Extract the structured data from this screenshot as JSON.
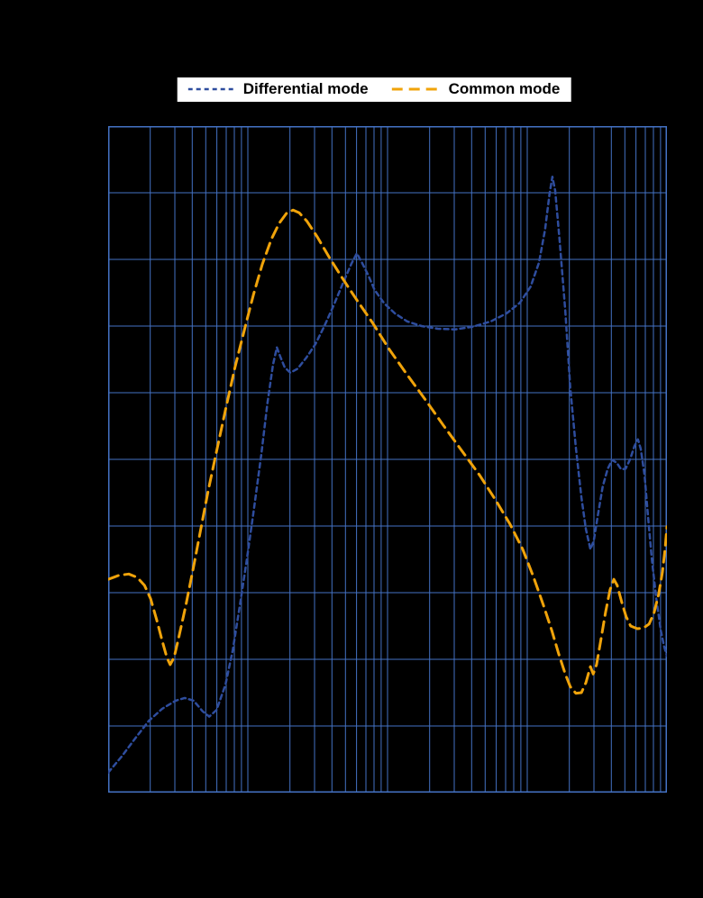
{
  "legend": {
    "background_color": "#ffffff",
    "text_color": "#000000"
  },
  "chart_data": {
    "type": "line",
    "title": "",
    "xlabel": "",
    "ylabel": "",
    "x_scale": "log",
    "x_decades": 4,
    "y_divisions": 10,
    "grid": true,
    "grid_color": "#4472c4",
    "background_color": "#000000",
    "legend_position": "top-center",
    "axis_tick_labels_visible": false,
    "series": [
      {
        "name": "Differential mode",
        "color": "#2e4d9e",
        "dash": "5 4",
        "width": 2.5,
        "points": [
          [
            0.0,
            0.03
          ],
          [
            0.024,
            0.054
          ],
          [
            0.048,
            0.081
          ],
          [
            0.073,
            0.108
          ],
          [
            0.097,
            0.126
          ],
          [
            0.121,
            0.138
          ],
          [
            0.137,
            0.142
          ],
          [
            0.153,
            0.138
          ],
          [
            0.169,
            0.122
          ],
          [
            0.181,
            0.114
          ],
          [
            0.194,
            0.124
          ],
          [
            0.21,
            0.162
          ],
          [
            0.223,
            0.214
          ],
          [
            0.235,
            0.277
          ],
          [
            0.248,
            0.349
          ],
          [
            0.261,
            0.426
          ],
          [
            0.274,
            0.507
          ],
          [
            0.285,
            0.584
          ],
          [
            0.295,
            0.642
          ],
          [
            0.302,
            0.668
          ],
          [
            0.308,
            0.654
          ],
          [
            0.316,
            0.638
          ],
          [
            0.326,
            0.63
          ],
          [
            0.339,
            0.636
          ],
          [
            0.355,
            0.653
          ],
          [
            0.371,
            0.673
          ],
          [
            0.387,
            0.7
          ],
          [
            0.403,
            0.73
          ],
          [
            0.419,
            0.762
          ],
          [
            0.435,
            0.793
          ],
          [
            0.445,
            0.809
          ],
          [
            0.453,
            0.797
          ],
          [
            0.465,
            0.777
          ],
          [
            0.477,
            0.754
          ],
          [
            0.494,
            0.734
          ],
          [
            0.513,
            0.719
          ],
          [
            0.535,
            0.707
          ],
          [
            0.561,
            0.7
          ],
          [
            0.59,
            0.696
          ],
          [
            0.621,
            0.695
          ],
          [
            0.653,
            0.699
          ],
          [
            0.685,
            0.707
          ],
          [
            0.713,
            0.719
          ],
          [
            0.737,
            0.735
          ],
          [
            0.756,
            0.759
          ],
          [
            0.771,
            0.795
          ],
          [
            0.782,
            0.845
          ],
          [
            0.79,
            0.899
          ],
          [
            0.795,
            0.924
          ],
          [
            0.8,
            0.903
          ],
          [
            0.808,
            0.827
          ],
          [
            0.818,
            0.723
          ],
          [
            0.827,
            0.608
          ],
          [
            0.837,
            0.518
          ],
          [
            0.847,
            0.443
          ],
          [
            0.855,
            0.395
          ],
          [
            0.863,
            0.365
          ],
          [
            0.869,
            0.378
          ],
          [
            0.877,
            0.419
          ],
          [
            0.885,
            0.459
          ],
          [
            0.894,
            0.486
          ],
          [
            0.902,
            0.499
          ],
          [
            0.91,
            0.495
          ],
          [
            0.918,
            0.485
          ],
          [
            0.926,
            0.486
          ],
          [
            0.934,
            0.5
          ],
          [
            0.942,
            0.52
          ],
          [
            0.948,
            0.53
          ],
          [
            0.953,
            0.516
          ],
          [
            0.96,
            0.476
          ],
          [
            0.966,
            0.416
          ],
          [
            0.973,
            0.349
          ],
          [
            0.981,
            0.291
          ],
          [
            0.989,
            0.243
          ],
          [
            0.995,
            0.219
          ],
          [
            1.0,
            0.205
          ]
        ]
      },
      {
        "name": "Common mode",
        "color": "#f0a30a",
        "dash": "12 7",
        "width": 3,
        "points": [
          [
            0.0,
            0.32
          ],
          [
            0.019,
            0.326
          ],
          [
            0.037,
            0.328
          ],
          [
            0.052,
            0.323
          ],
          [
            0.065,
            0.311
          ],
          [
            0.076,
            0.291
          ],
          [
            0.087,
            0.259
          ],
          [
            0.097,
            0.227
          ],
          [
            0.105,
            0.203
          ],
          [
            0.111,
            0.192
          ],
          [
            0.118,
            0.203
          ],
          [
            0.127,
            0.235
          ],
          [
            0.139,
            0.281
          ],
          [
            0.152,
            0.335
          ],
          [
            0.165,
            0.392
          ],
          [
            0.179,
            0.453
          ],
          [
            0.195,
            0.516
          ],
          [
            0.211,
            0.578
          ],
          [
            0.227,
            0.638
          ],
          [
            0.244,
            0.695
          ],
          [
            0.26,
            0.747
          ],
          [
            0.276,
            0.793
          ],
          [
            0.292,
            0.83
          ],
          [
            0.306,
            0.854
          ],
          [
            0.319,
            0.869
          ],
          [
            0.331,
            0.874
          ],
          [
            0.342,
            0.87
          ],
          [
            0.356,
            0.857
          ],
          [
            0.374,
            0.834
          ],
          [
            0.395,
            0.804
          ],
          [
            0.419,
            0.772
          ],
          [
            0.445,
            0.739
          ],
          [
            0.473,
            0.705
          ],
          [
            0.503,
            0.665
          ],
          [
            0.535,
            0.627
          ],
          [
            0.568,
            0.589
          ],
          [
            0.6,
            0.551
          ],
          [
            0.632,
            0.514
          ],
          [
            0.665,
            0.476
          ],
          [
            0.694,
            0.438
          ],
          [
            0.719,
            0.403
          ],
          [
            0.742,
            0.365
          ],
          [
            0.761,
            0.324
          ],
          [
            0.779,
            0.281
          ],
          [
            0.794,
            0.243
          ],
          [
            0.806,
            0.209
          ],
          [
            0.818,
            0.178
          ],
          [
            0.827,
            0.159
          ],
          [
            0.837,
            0.149
          ],
          [
            0.847,
            0.15
          ],
          [
            0.855,
            0.165
          ],
          [
            0.863,
            0.189
          ],
          [
            0.868,
            0.178
          ],
          [
            0.874,
            0.192
          ],
          [
            0.882,
            0.23
          ],
          [
            0.89,
            0.27
          ],
          [
            0.898,
            0.304
          ],
          [
            0.905,
            0.32
          ],
          [
            0.911,
            0.311
          ],
          [
            0.919,
            0.286
          ],
          [
            0.927,
            0.264
          ],
          [
            0.935,
            0.25
          ],
          [
            0.947,
            0.246
          ],
          [
            0.958,
            0.247
          ],
          [
            0.968,
            0.253
          ],
          [
            0.977,
            0.27
          ],
          [
            0.985,
            0.297
          ],
          [
            0.992,
            0.331
          ],
          [
            0.997,
            0.368
          ],
          [
            1.0,
            0.399
          ]
        ]
      }
    ]
  }
}
